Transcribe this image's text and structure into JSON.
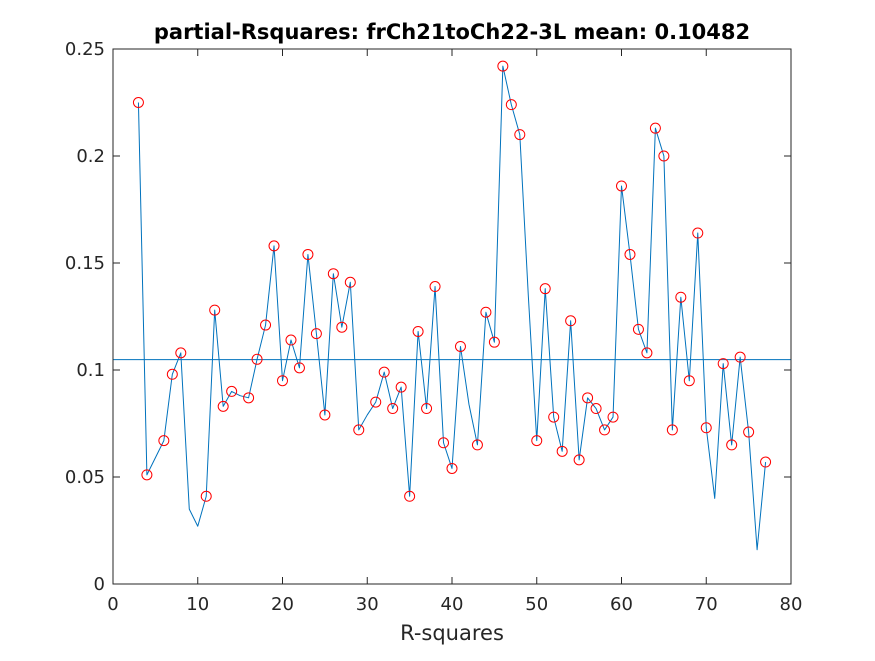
{
  "chart_data": {
    "type": "line",
    "title": "partial-Rsquares: frCh21toCh22-3L mean: 0.10482",
    "xlabel": "R-squares",
    "ylabel": "",
    "xlim": [
      0,
      80
    ],
    "ylim": [
      0,
      0.25
    ],
    "xticks": [
      0,
      10,
      20,
      30,
      40,
      50,
      60,
      70,
      80
    ],
    "xtick_labels": [
      "0",
      "10",
      "20",
      "30",
      "40",
      "50",
      "60",
      "70",
      "80"
    ],
    "yticks": [
      0,
      0.05,
      0.1,
      0.15,
      0.2,
      0.25
    ],
    "ytick_labels": [
      "0",
      "0.05",
      "0.1",
      "0.15",
      "0.2",
      "0.25"
    ],
    "grid": false,
    "series": [
      {
        "style": "line",
        "color": "#0072bd",
        "x": [
          3,
          4,
          5,
          6,
          7,
          8,
          9,
          10,
          11,
          12,
          13,
          14,
          15,
          16,
          17,
          18,
          19,
          20,
          21,
          22,
          23,
          24,
          25,
          26,
          27,
          28,
          29,
          30,
          31,
          32,
          33,
          34,
          35,
          36,
          37,
          38,
          39,
          40,
          41,
          42,
          43,
          44,
          45,
          46,
          47,
          48,
          49,
          50,
          51,
          52,
          53,
          54,
          55,
          56,
          57,
          58,
          59,
          60,
          61,
          62,
          63,
          64,
          65,
          66,
          67,
          68,
          69,
          70,
          71,
          72,
          73,
          74,
          75,
          76,
          77
        ],
        "y": [
          0.225,
          0.051,
          0.059,
          0.067,
          0.098,
          0.108,
          0.035,
          0.027,
          0.041,
          0.128,
          0.083,
          0.09,
          0.088,
          0.087,
          0.105,
          0.121,
          0.158,
          0.095,
          0.114,
          0.101,
          0.154,
          0.117,
          0.079,
          0.145,
          0.12,
          0.141,
          0.072,
          0.079,
          0.085,
          0.099,
          0.082,
          0.092,
          0.041,
          0.118,
          0.082,
          0.139,
          0.066,
          0.054,
          0.111,
          0.084,
          0.065,
          0.127,
          0.113,
          0.242,
          0.224,
          0.21,
          0.135,
          0.067,
          0.138,
          0.078,
          0.062,
          0.123,
          0.058,
          0.087,
          0.082,
          0.072,
          0.078,
          0.186,
          0.154,
          0.119,
          0.108,
          0.213,
          0.2,
          0.072,
          0.134,
          0.095,
          0.164,
          0.073,
          0.04,
          0.103,
          0.065,
          0.106,
          0.071,
          0.016,
          0.057
        ]
      },
      {
        "style": "markers",
        "marker": "circle",
        "color": "#ff0000",
        "x": [
          3,
          4,
          6,
          7,
          8,
          11,
          12,
          13,
          14,
          16,
          17,
          18,
          19,
          20,
          21,
          22,
          23,
          24,
          25,
          26,
          27,
          28,
          29,
          31,
          32,
          33,
          34,
          35,
          36,
          37,
          38,
          39,
          40,
          41,
          43,
          44,
          45,
          46,
          47,
          48,
          50,
          51,
          52,
          53,
          54,
          55,
          56,
          57,
          58,
          59,
          60,
          61,
          62,
          63,
          64,
          65,
          66,
          67,
          68,
          69,
          70,
          72,
          73,
          74,
          75,
          77
        ],
        "y": [
          0.225,
          0.051,
          0.067,
          0.098,
          0.108,
          0.041,
          0.128,
          0.083,
          0.09,
          0.087,
          0.105,
          0.121,
          0.158,
          0.095,
          0.114,
          0.101,
          0.154,
          0.117,
          0.079,
          0.145,
          0.12,
          0.141,
          0.072,
          0.085,
          0.099,
          0.082,
          0.092,
          0.041,
          0.118,
          0.082,
          0.139,
          0.066,
          0.054,
          0.111,
          0.065,
          0.127,
          0.113,
          0.242,
          0.224,
          0.21,
          0.067,
          0.138,
          0.078,
          0.062,
          0.123,
          0.058,
          0.087,
          0.082,
          0.072,
          0.078,
          0.186,
          0.154,
          0.119,
          0.108,
          0.213,
          0.2,
          0.072,
          0.134,
          0.095,
          0.164,
          0.073,
          0.103,
          0.065,
          0.106,
          0.071,
          0.057
        ]
      }
    ],
    "reference_line": {
      "orientation": "horizontal",
      "y": 0.10482,
      "color": "#0072bd"
    }
  }
}
